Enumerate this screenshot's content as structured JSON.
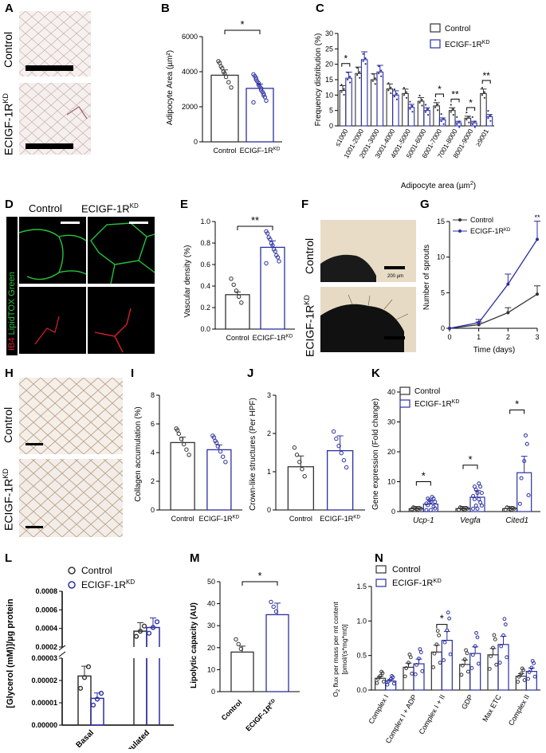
{
  "labels": {
    "A": "A",
    "B": "B",
    "C": "C",
    "D": "D",
    "E": "E",
    "F": "F",
    "G": "G",
    "H": "H",
    "I": "I",
    "J": "J",
    "K": "K",
    "L": "L",
    "M": "M",
    "N": "N"
  },
  "groups": {
    "control": "Control",
    "ko": "ECIGF-1R",
    "ko_sup": "KD"
  },
  "colors": {
    "control": "#333333",
    "ko": "#2b2fa0",
    "green": "#27c23a",
    "red": "#d8202a"
  },
  "panelA": {
    "row1": "Control",
    "row2": "ECIGF-1R",
    "row2_sup": "KD"
  },
  "panelB": {
    "ylabel": "Adipocyte Area (µm²)",
    "sig": "*",
    "yticks": [
      "0",
      "2000",
      "4000",
      "6000"
    ],
    "chart_data": {
      "type": "bar",
      "categories": [
        "Control",
        "ECIGF-1R KD"
      ],
      "values": [
        3800,
        3050
      ],
      "ylim": [
        0,
        6000
      ]
    }
  },
  "panelC": {
    "ylabel": "Frequency distribution (%)",
    "xlabel": "Adipocyte area (µm",
    "xlabel_sup": "2",
    "xlabel_end": ")",
    "yticks": [
      "0",
      "5",
      "10",
      "15",
      "20",
      "25",
      "30"
    ],
    "legend": [
      "Control",
      "ECIGF-1R"
    ],
    "chart_data": {
      "type": "bar",
      "categories": [
        "≤1000",
        "1001-2000",
        "2001-3000",
        "3001-4000",
        "4001-5000",
        "5001-6000",
        "6001-7000",
        "7001-8000",
        "8001-9000",
        "≥9001"
      ],
      "series": [
        {
          "name": "Control",
          "values": [
            11.5,
            17,
            15,
            12,
            10.5,
            8,
            6.5,
            5,
            2.5,
            10.5
          ]
        },
        {
          "name": "ECIGF-1R KD",
          "values": [
            15.5,
            21.5,
            17.5,
            10,
            6,
            5,
            2,
            1,
            1,
            3
          ]
        }
      ],
      "ylim": [
        0,
        30
      ],
      "sig": [
        {
          "index": 0,
          "label": "*"
        },
        {
          "index": 6,
          "label": "*"
        },
        {
          "index": 7,
          "label": "**"
        },
        {
          "index": 8,
          "label": "*"
        },
        {
          "index": 9,
          "label": "**"
        }
      ]
    }
  },
  "panelD": {
    "col1": "Control",
    "col2": "ECIGF-1R",
    "col2_sup": "KD",
    "side1": "IB4",
    "side2": " LipidTOX Green"
  },
  "panelE": {
    "ylabel": "Vascular density (%)",
    "sig": "**",
    "yticks": [
      "0.0",
      "0.2",
      "0.4",
      "0.6",
      "0.8",
      "1.0"
    ],
    "chart_data": {
      "type": "bar",
      "categories": [
        "Control",
        "ECIGF-1R KD"
      ],
      "values": [
        0.32,
        0.76
      ],
      "ylim": [
        0,
        1.0
      ]
    }
  },
  "panelF": {
    "row1": "Control",
    "row2": "ECIGF-1R",
    "row2_sup": "KD",
    "scale": "200 µm"
  },
  "panelG": {
    "ylabel": "Number of sprouts",
    "xlabel": "Time (days)",
    "yticks": [
      "0",
      "5",
      "10",
      "15"
    ],
    "xticks": [
      "0",
      "1",
      "2",
      "3"
    ],
    "sig": "**",
    "legend": [
      "Control",
      "ECIGF-1R"
    ],
    "chart_data": {
      "type": "line",
      "x": [
        0,
        1,
        2,
        3
      ],
      "series": [
        {
          "name": "Control",
          "values": [
            0,
            0.5,
            2.2,
            4.8
          ]
        },
        {
          "name": "ECIGF-1R KD",
          "values": [
            0,
            0.8,
            6.2,
            12.5
          ]
        }
      ],
      "ylim": [
        0,
        15
      ]
    }
  },
  "panelH": {
    "row1": "Control",
    "row2": "ECIGF-1R",
    "row2_sup": "KD"
  },
  "panelI": {
    "ylabel": "Collagen accumulation (%)",
    "yticks": [
      "0",
      "2",
      "4",
      "6",
      "8"
    ],
    "chart_data": {
      "type": "bar",
      "categories": [
        "Control",
        "ECIGF-1R KD"
      ],
      "values": [
        4.7,
        4.2
      ],
      "ylim": [
        0,
        8
      ]
    }
  },
  "panelJ": {
    "ylabel": "Crown-like structures (Per HPF)",
    "yticks": [
      "0",
      "1",
      "2",
      "3"
    ],
    "chart_data": {
      "type": "bar",
      "categories": [
        "Control",
        "ECIGF-1R KD"
      ],
      "values": [
        1.13,
        1.55
      ],
      "ylim": [
        0,
        3
      ]
    }
  },
  "panelK": {
    "ylabel": "Gene expression (Fold change)",
    "yticks": [
      "0",
      "10",
      "20",
      "30",
      "40"
    ],
    "legend": [
      "Control",
      "ECIGF-1R"
    ],
    "chart_data": {
      "type": "bar",
      "categories": [
        "Ucp-1",
        "Vegfa",
        "Cited1"
      ],
      "series": [
        {
          "name": "Control",
          "values": [
            1,
            1,
            1
          ]
        },
        {
          "name": "ECIGF-1R KD",
          "values": [
            2.5,
            4.8,
            13
          ]
        }
      ],
      "ylim": [
        0,
        40
      ],
      "sig": [
        "*",
        "*",
        "*"
      ]
    }
  },
  "panelL": {
    "ylabel": "[Glycerol (mM)]/µg protein",
    "legend": [
      "Control",
      "ECIGF-1R"
    ],
    "yticks_upper": [
      "0.0002",
      "0.0004",
      "0.0006",
      "0.0008"
    ],
    "yticks_lower": [
      "0.00000",
      "0.00001",
      "0.00002",
      "0.00003"
    ],
    "chart_data": {
      "type": "bar",
      "categories": [
        "Basal",
        "Stimulated"
      ],
      "series": [
        {
          "name": "Control",
          "values": [
            2.2e-05,
            0.00037
          ]
        },
        {
          "name": "ECIGF-1R KD",
          "values": [
            1.2e-05,
            0.00041
          ]
        }
      ]
    }
  },
  "panelM": {
    "ylabel": "Lipolytic capacity (AU)",
    "sig": "*",
    "yticks": [
      "0",
      "10",
      "20",
      "30",
      "40",
      "50"
    ],
    "chart_data": {
      "type": "bar",
      "categories": [
        "Control",
        "ECIGF-1R KD"
      ],
      "values": [
        18,
        35
      ],
      "ylim": [
        0,
        50
      ]
    }
  },
  "panelN": {
    "ylabel1": "O",
    "ylabel1_sub": "2",
    "ylabel1_end": " flux per mass per mt content",
    "ylabel2": "[pmol/(s*mg*mt)]",
    "yticks": [
      "0.0",
      "0.5",
      "1.0",
      "1.5"
    ],
    "legend": [
      "Control",
      "ECIGF-1R"
    ],
    "sig": "*",
    "chart_data": {
      "type": "bar",
      "categories": [
        "Complex I",
        "Complex I + ADP",
        "Complex I + II",
        "GDP",
        "Max ETC",
        "Complex II"
      ],
      "series": [
        {
          "name": "Control",
          "values": [
            0.17,
            0.33,
            0.55,
            0.37,
            0.51,
            0.2
          ]
        },
        {
          "name": "ECIGF-1R KD",
          "values": [
            0.13,
            0.38,
            0.72,
            0.53,
            0.66,
            0.27
          ]
        }
      ],
      "ylim": [
        0,
        1.5
      ]
    }
  }
}
